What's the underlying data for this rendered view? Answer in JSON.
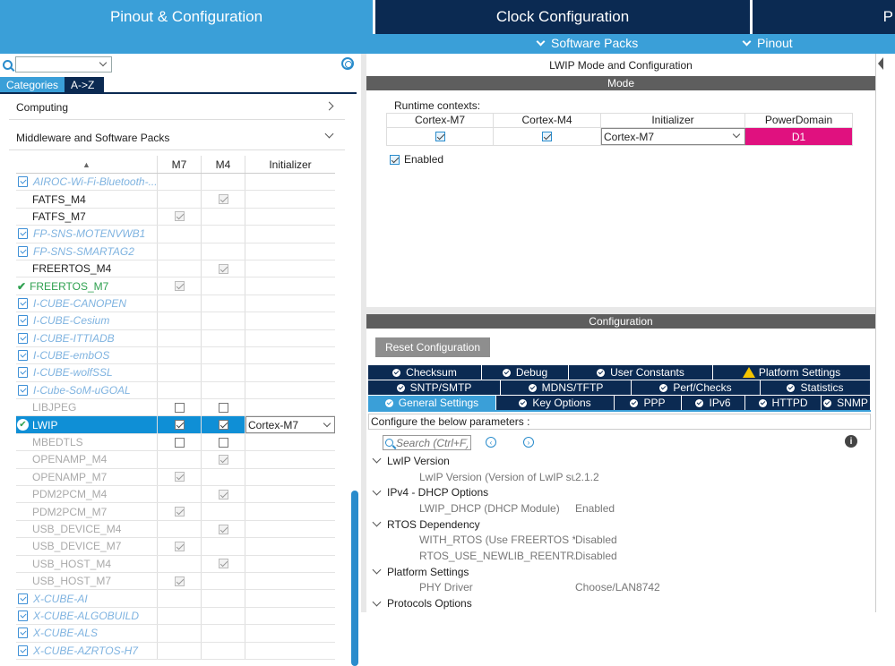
{
  "top_tabs": {
    "pinout": "Pinout & Configuration",
    "clock": "Clock Configuration",
    "partial": "P"
  },
  "subbar": {
    "software_packs": "Software Packs",
    "pinout": "Pinout"
  },
  "left": {
    "tabs": [
      "Categories",
      "A->Z"
    ],
    "categories": [
      "Computing",
      "Middleware and Software Packs"
    ],
    "grid_headers": [
      "M7",
      "M4",
      "Initializer"
    ],
    "rows": [
      {
        "name": "AIROC-Wi-Fi-Bluetooth-...",
        "m7": null,
        "m4": null,
        "init": "",
        "style": "pack"
      },
      {
        "name": "FATFS_M4",
        "m7": null,
        "m4": "dis-on",
        "init": "",
        "style": "normal"
      },
      {
        "name": "FATFS_M7",
        "m7": "dis-on",
        "m4": null,
        "init": "",
        "style": "normal"
      },
      {
        "name": "FP-SNS-MOTENVWB1",
        "m7": null,
        "m4": null,
        "init": "",
        "style": "pack"
      },
      {
        "name": "FP-SNS-SMARTAG2",
        "m7": null,
        "m4": null,
        "init": "",
        "style": "pack"
      },
      {
        "name": "FREERTOS_M4",
        "m7": null,
        "m4": "dis-on",
        "init": "",
        "style": "normal"
      },
      {
        "name": "FREERTOS_M7",
        "m7": "dis-on",
        "m4": null,
        "init": "",
        "style": "green"
      },
      {
        "name": "I-CUBE-CANOPEN",
        "m7": null,
        "m4": null,
        "init": "",
        "style": "pack"
      },
      {
        "name": "I-CUBE-Cesium",
        "m7": null,
        "m4": null,
        "init": "",
        "style": "pack"
      },
      {
        "name": "I-CUBE-ITTIADB",
        "m7": null,
        "m4": null,
        "init": "",
        "style": "pack"
      },
      {
        "name": "I-CUBE-embOS",
        "m7": null,
        "m4": null,
        "init": "",
        "style": "pack"
      },
      {
        "name": "I-CUBE-wolfSSL",
        "m7": null,
        "m4": null,
        "init": "",
        "style": "pack"
      },
      {
        "name": "I-Cube-SoM-uGOAL",
        "m7": null,
        "m4": null,
        "init": "",
        "style": "pack"
      },
      {
        "name": "LIBJPEG",
        "m7": "off",
        "m4": "off",
        "init": "",
        "style": "dim"
      },
      {
        "name": "LWIP",
        "m7": "on",
        "m4": "on",
        "init": "Cortex-M7",
        "style": "selected"
      },
      {
        "name": "MBEDTLS",
        "m7": "off",
        "m4": "off",
        "init": "",
        "style": "dim"
      },
      {
        "name": "OPENAMP_M4",
        "m7": null,
        "m4": "dis-on",
        "init": "",
        "style": "dim"
      },
      {
        "name": "OPENAMP_M7",
        "m7": "dis-on",
        "m4": null,
        "init": "",
        "style": "dim"
      },
      {
        "name": "PDM2PCM_M4",
        "m7": null,
        "m4": "dis-on",
        "init": "",
        "style": "dim"
      },
      {
        "name": "PDM2PCM_M7",
        "m7": "dis-on",
        "m4": null,
        "init": "",
        "style": "dim"
      },
      {
        "name": "USB_DEVICE_M4",
        "m7": null,
        "m4": "dis-on",
        "init": "",
        "style": "dim"
      },
      {
        "name": "USB_DEVICE_M7",
        "m7": "dis-on",
        "m4": null,
        "init": "",
        "style": "dim"
      },
      {
        "name": "USB_HOST_M4",
        "m7": null,
        "m4": "dis-on",
        "init": "",
        "style": "dim"
      },
      {
        "name": "USB_HOST_M7",
        "m7": "dis-on",
        "m4": null,
        "init": "",
        "style": "dim"
      },
      {
        "name": "X-CUBE-AI",
        "m7": null,
        "m4": null,
        "init": "",
        "style": "pack"
      },
      {
        "name": "X-CUBE-ALGOBUILD",
        "m7": null,
        "m4": null,
        "init": "",
        "style": "pack"
      },
      {
        "name": "X-CUBE-ALS",
        "m7": null,
        "m4": null,
        "init": "",
        "style": "pack"
      },
      {
        "name": "X-CUBE-AZRTOS-H7",
        "m7": null,
        "m4": null,
        "init": "",
        "style": "pack"
      }
    ]
  },
  "right": {
    "title": "LWIP Mode and Configuration",
    "mode_header": "Mode",
    "runtime_label": "Runtime contexts:",
    "rt_headers": [
      "Cortex-M7",
      "Cortex-M4",
      "Initializer",
      "PowerDomain"
    ],
    "rt_initializer": "Cortex-M7",
    "rt_power": "D1",
    "enabled_label": "Enabled",
    "config_header": "Configuration",
    "reset_button": "Reset Configuration",
    "tabs_row1": [
      {
        "label": "Checksum",
        "icon": "ok"
      },
      {
        "label": "Debug",
        "icon": "ok"
      },
      {
        "label": "User Constants",
        "icon": "ok"
      },
      {
        "label": "Platform Settings",
        "icon": "warn"
      }
    ],
    "tabs_row2": [
      {
        "label": "SNTP/SMTP",
        "icon": "ok"
      },
      {
        "label": "MDNS/TFTP",
        "icon": "ok"
      },
      {
        "label": "Perf/Checks",
        "icon": "ok"
      },
      {
        "label": "Statistics",
        "icon": "ok"
      }
    ],
    "tabs_row3": [
      {
        "label": "General Settings",
        "icon": "ok",
        "active": true
      },
      {
        "label": "Key Options",
        "icon": "ok"
      },
      {
        "label": "PPP",
        "icon": "ok"
      },
      {
        "label": "IPv6",
        "icon": "ok"
      },
      {
        "label": "HTTPD",
        "icon": "ok"
      },
      {
        "label": "SNMP",
        "icon": "ok"
      }
    ],
    "configure_label": "Configure the below parameters :",
    "search_placeholder": "Search (Ctrl+F)",
    "groups": [
      {
        "name": "LwIP Version",
        "params": [
          {
            "k": "LwIP Version (Version of LwIP supported ...",
            "v": "2.1.2"
          }
        ]
      },
      {
        "name": "IPv4 - DHCP Options",
        "params": [
          {
            "k": "LWIP_DHCP (DHCP Module)",
            "v": "Enabled"
          }
        ]
      },
      {
        "name": "RTOS Dependency",
        "params": [
          {
            "k": "WITH_RTOS (Use FREERTOS ** CubeM...",
            "v": "Disabled"
          },
          {
            "k": "RTOS_USE_NEWLIB_REENTRANT (No ...",
            "v": "Disabled"
          }
        ]
      },
      {
        "name": "Platform Settings",
        "params": [
          {
            "k": "PHY Driver",
            "v": "Choose/LAN8742"
          }
        ]
      },
      {
        "name": "Protocols Options",
        "params": []
      }
    ]
  },
  "colors": {
    "top_active": "#3a9fd8",
    "top_inactive": "#0b2a52",
    "selected_row": "#0f8fd6",
    "power_domain": "#e0117f",
    "pack_text": "#7fb3e0",
    "green": "#2ea04f"
  }
}
